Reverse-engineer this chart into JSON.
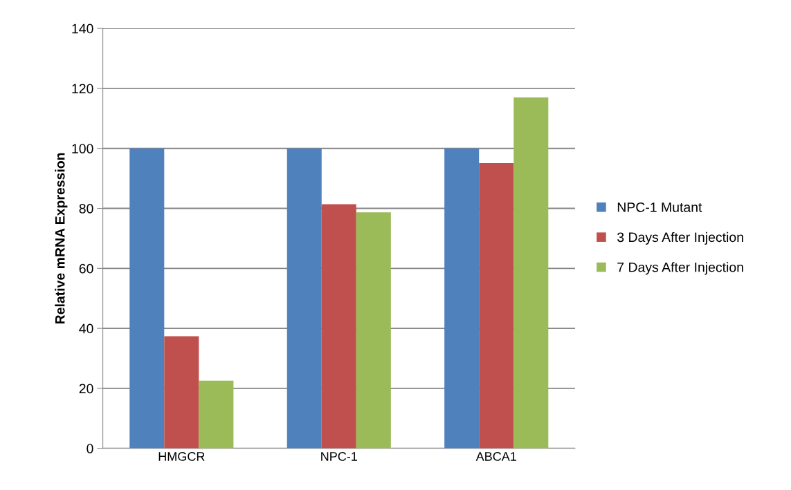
{
  "chart_data": {
    "type": "bar",
    "ylabel": "Relative mRNA Expression",
    "categories": [
      "HMGCR",
      "NPC-1",
      "ABCA1"
    ],
    "series": [
      {
        "name": "NPC-1 Mutant",
        "color": "#4f81bd",
        "values": [
          100,
          100,
          100
        ]
      },
      {
        "name": "3 Days After Injection",
        "color": "#c0504d",
        "values": [
          37.4,
          81.4,
          95.1
        ]
      },
      {
        "name": "7 Days After Injection",
        "color": "#9bbb59",
        "values": [
          22.6,
          78.7,
          117
        ]
      }
    ],
    "ylim": [
      0,
      140
    ],
    "yticks": [
      0,
      20,
      40,
      60,
      80,
      100,
      120,
      140
    ],
    "grid": "y",
    "legend": "right"
  }
}
